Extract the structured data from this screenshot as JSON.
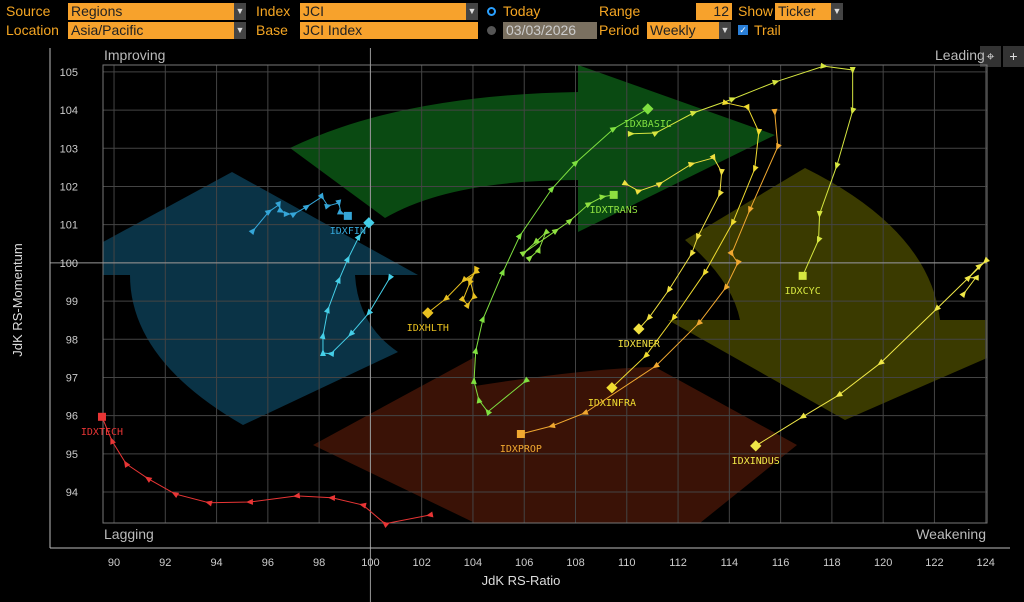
{
  "controls": {
    "source_label": "Source",
    "source_value": "Regions",
    "location_label": "Location",
    "location_value": "Asia/Pacific",
    "index_label": "Index",
    "index_value": "JCI",
    "base_label": "Base",
    "base_value": "JCI Index",
    "today_label": "Today",
    "date_value": "03/03/2026",
    "range_label": "Range",
    "range_value": "12",
    "period_label": "Period",
    "period_value": "Weekly",
    "show_label": "Show",
    "show_value": "Ticker",
    "trail_label": "Trail",
    "trail_checked": true
  },
  "toolbar": {
    "crosshair": "⌖",
    "zoom": "+"
  },
  "chart_data": {
    "type": "scatter",
    "title": "",
    "xlabel": "JdK RS-Ratio",
    "ylabel": "JdK RS-Momentum",
    "xlim": [
      89.57,
      124.05
    ],
    "ylim": [
      93.19,
      105.18
    ],
    "xticks": [
      90,
      92,
      94,
      96,
      98,
      100,
      102,
      104,
      106,
      108,
      110,
      112,
      114,
      116,
      118,
      120,
      122,
      124
    ],
    "yticks": [
      94,
      95,
      96,
      97,
      98,
      99,
      100,
      101,
      102,
      103,
      104,
      105
    ],
    "center": [
      100,
      100
    ],
    "grid": true,
    "quadrants": {
      "top_left": "Improving",
      "top_right": "Leading",
      "bottom_left": "Lagging",
      "bottom_right": "Weakening"
    },
    "quadrant_colors": {
      "improving": "#0f3f1a",
      "leading": "#0b4a10",
      "weakening": "#3a3a00",
      "lagging": "#3a1208",
      "improving_blue": "#0b3346"
    },
    "series": [
      {
        "name": "IDXTECH",
        "color": "#e83535",
        "marker": "square",
        "points": [
          [
            102.32,
            93.4
          ],
          [
            100.57,
            93.17
          ],
          [
            99.71,
            93.66
          ],
          [
            98.5,
            93.85
          ],
          [
            97.13,
            93.9
          ],
          [
            95.3,
            93.74
          ],
          [
            93.7,
            93.72
          ],
          [
            92.38,
            93.95
          ],
          [
            91.33,
            94.35
          ],
          [
            90.47,
            94.74
          ],
          [
            89.92,
            95.34
          ],
          [
            89.53,
            95.97
          ]
        ]
      },
      {
        "name": "IDXFIN",
        "color": "#35a6d8",
        "marker": "square",
        "points": [
          [
            95.42,
            100.84
          ],
          [
            96.04,
            101.34
          ],
          [
            96.43,
            101.52
          ],
          [
            96.51,
            101.36
          ],
          [
            96.74,
            101.28
          ],
          [
            97.02,
            101.28
          ],
          [
            97.52,
            101.47
          ],
          [
            98.11,
            101.73
          ],
          [
            98.34,
            101.49
          ],
          [
            98.77,
            101.57
          ],
          [
            98.85,
            101.31
          ],
          [
            99.12,
            101.23
          ]
        ]
      },
      {
        "name": "",
        "color": "#45cfe8",
        "marker": "diamond",
        "points": [
          [
            100.76,
            99.61
          ],
          [
            99.94,
            98.69
          ],
          [
            99.24,
            98.14
          ],
          [
            98.46,
            97.62
          ],
          [
            98.15,
            97.64
          ],
          [
            98.15,
            98.09
          ],
          [
            98.34,
            98.77
          ],
          [
            98.77,
            99.55
          ],
          [
            99.12,
            100.1
          ],
          [
            99.55,
            100.68
          ],
          [
            99.94,
            101.05
          ]
        ]
      },
      {
        "name": "IDXHLTH",
        "color": "#e8c020",
        "marker": "diamond",
        "points": [
          [
            104.11,
            99.82
          ],
          [
            103.88,
            99.48
          ],
          [
            103.61,
            99.03
          ],
          [
            103.8,
            98.9
          ],
          [
            104.04,
            99.14
          ],
          [
            103.88,
            99.58
          ],
          [
            104.11,
            99.76
          ],
          [
            103.65,
            99.55
          ],
          [
            102.94,
            99.06
          ],
          [
            102.24,
            98.69
          ]
        ]
      },
      {
        "name": "IDXBASIC",
        "color": "#7fe040",
        "marker": "diamond",
        "points": [
          [
            106.06,
            96.91
          ],
          [
            104.58,
            96.1
          ],
          [
            104.23,
            96.41
          ],
          [
            104.04,
            96.91
          ],
          [
            104.11,
            97.7
          ],
          [
            104.39,
            98.53
          ],
          [
            105.17,
            99.76
          ],
          [
            105.83,
            100.71
          ],
          [
            107.08,
            101.94
          ],
          [
            108.01,
            102.62
          ],
          [
            109.49,
            103.51
          ],
          [
            110.82,
            104.03
          ]
        ]
      },
      {
        "name": "IDXTRANS",
        "color": "#8ee040",
        "marker": "square",
        "points": [
          [
            106.22,
            100.13
          ],
          [
            106.57,
            100.34
          ],
          [
            106.84,
            100.79
          ],
          [
            106.45,
            100.55
          ],
          [
            105.98,
            100.26
          ],
          [
            107.23,
            100.84
          ],
          [
            107.78,
            101.1
          ],
          [
            108.52,
            101.54
          ],
          [
            109.06,
            101.73
          ],
          [
            109.49,
            101.78
          ]
        ]
      },
      {
        "name": "IDXCYC",
        "color": "#d6e640",
        "marker": "square",
        "points": [
          [
            110.16,
            103.38
          ],
          [
            111.13,
            103.4
          ],
          [
            112.61,
            103.93
          ],
          [
            114.13,
            104.29
          ],
          [
            115.81,
            104.74
          ],
          [
            117.68,
            105.15
          ],
          [
            118.81,
            105.05
          ],
          [
            118.81,
            103.98
          ],
          [
            118.19,
            102.54
          ],
          [
            117.52,
            101.28
          ],
          [
            117.48,
            100.6
          ],
          [
            116.86,
            99.66
          ]
        ]
      },
      {
        "name": "IDXENER",
        "color": "#f0e040",
        "marker": "diamond",
        "points": [
          [
            109.96,
            102.07
          ],
          [
            110.47,
            101.88
          ],
          [
            111.29,
            102.07
          ],
          [
            112.53,
            102.59
          ],
          [
            113.39,
            102.75
          ],
          [
            113.7,
            102.38
          ],
          [
            113.63,
            101.81
          ],
          [
            112.77,
            100.68
          ],
          [
            112.53,
            100.24
          ],
          [
            111.64,
            99.29
          ],
          [
            110.86,
            98.56
          ],
          [
            110.47,
            98.27
          ]
        ]
      },
      {
        "name": "IDXINFRA",
        "color": "#f0dc30",
        "marker": "diamond",
        "points": [
          [
            113.86,
            104.19
          ],
          [
            114.72,
            104.06
          ],
          [
            115.15,
            103.43
          ],
          [
            114.99,
            102.46
          ],
          [
            114.13,
            101.05
          ],
          [
            113.04,
            99.74
          ],
          [
            111.83,
            98.56
          ],
          [
            110.74,
            97.57
          ],
          [
            109.42,
            96.73
          ]
        ]
      },
      {
        "name": "IDXPROP",
        "color": "#f0a830",
        "marker": "square",
        "points": [
          [
            115.77,
            103.95
          ],
          [
            115.89,
            103.04
          ],
          [
            114.8,
            101.39
          ],
          [
            114.09,
            100.24
          ],
          [
            114.33,
            100.0
          ],
          [
            113.86,
            99.35
          ],
          [
            112.81,
            98.42
          ],
          [
            111.13,
            97.3
          ],
          [
            108.36,
            96.07
          ],
          [
            107.08,
            95.73
          ],
          [
            105.87,
            95.52
          ]
        ]
      },
      {
        "name": "IDXINDUS",
        "color": "#f0e848",
        "marker": "diamond",
        "points": [
          [
            123.14,
            99.19
          ],
          [
            123.61,
            99.61
          ],
          [
            123.33,
            99.61
          ],
          [
            123.76,
            99.92
          ],
          [
            124.0,
            100.05
          ],
          [
            122.09,
            98.8
          ],
          [
            119.9,
            97.38
          ],
          [
            118.27,
            96.54
          ],
          [
            116.86,
            95.97
          ],
          [
            115.03,
            95.21
          ]
        ]
      }
    ]
  }
}
